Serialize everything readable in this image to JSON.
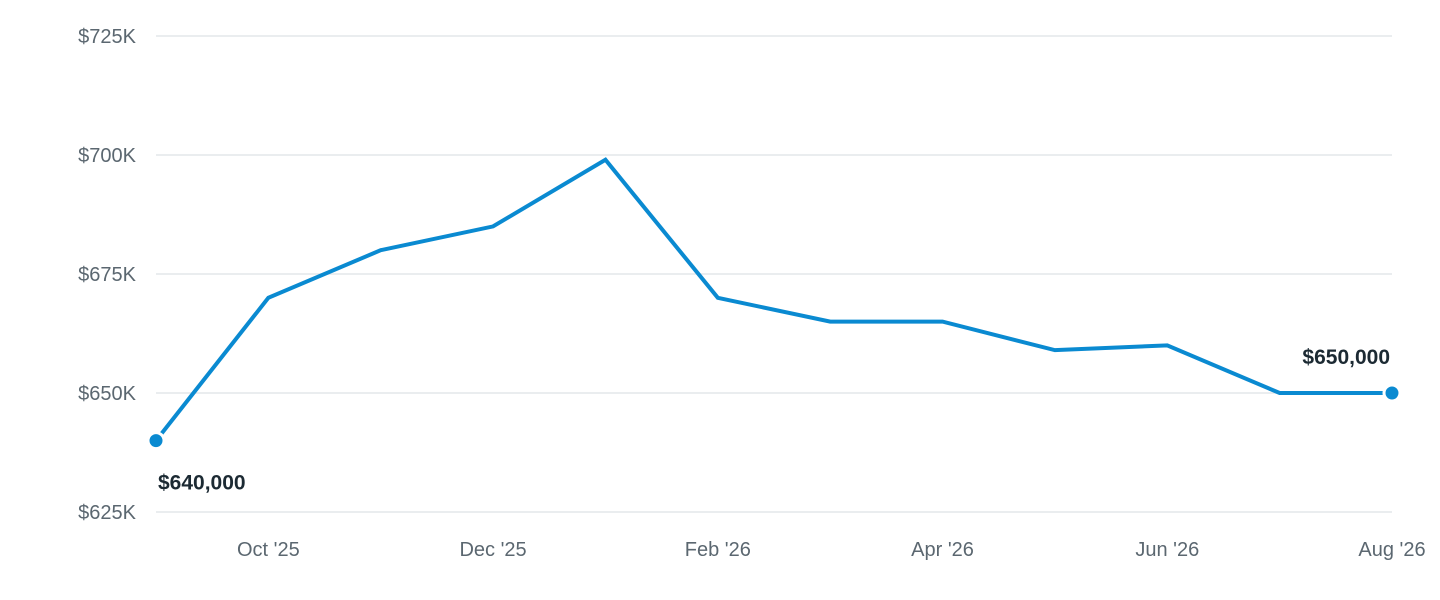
{
  "chart_data": {
    "type": "line",
    "title": "",
    "xlabel": "",
    "ylabel": "",
    "grid": true,
    "ylim": [
      625000,
      725000
    ],
    "y_ticks": [
      {
        "value": 625000,
        "label": "$625K"
      },
      {
        "value": 650000,
        "label": "$650K"
      },
      {
        "value": 675000,
        "label": "$675K"
      },
      {
        "value": 700000,
        "label": "$700K"
      },
      {
        "value": 725000,
        "label": "$725K"
      }
    ],
    "x_ticks": [
      {
        "date": "2025-10",
        "label": "Oct '25"
      },
      {
        "date": "2025-12",
        "label": "Dec '25"
      },
      {
        "date": "2026-02",
        "label": "Feb '26"
      },
      {
        "date": "2026-04",
        "label": "Apr '26"
      },
      {
        "date": "2026-06",
        "label": "Jun '26"
      },
      {
        "date": "2026-08",
        "label": "Aug '26"
      }
    ],
    "x": [
      "2025-09",
      "2025-10",
      "2025-11",
      "2025-12",
      "2026-01",
      "2026-02",
      "2026-03",
      "2026-04",
      "2026-05",
      "2026-06",
      "2026-07",
      "2026-08"
    ],
    "series": [
      {
        "color": "#0a8ad1",
        "values": [
          640000,
          670000,
          680000,
          685000,
          699000,
          670000,
          665000,
          665000,
          659000,
          660000,
          650000,
          650000
        ]
      }
    ],
    "annotations": [
      {
        "date": "2025-09",
        "value": 640000,
        "label": "$640,000",
        "position": "below"
      },
      {
        "date": "2026-08",
        "value": 650000,
        "label": "$650,000",
        "position": "above"
      }
    ]
  }
}
